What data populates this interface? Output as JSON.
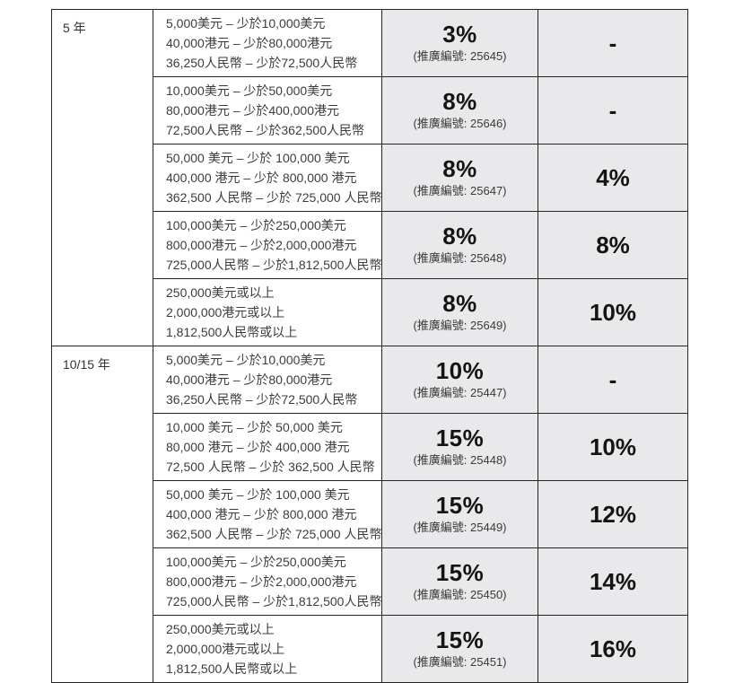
{
  "table": {
    "accent_bg": "#e9e9eb",
    "border_color": "#242424",
    "sections": [
      {
        "term": "5 年",
        "rows": [
          {
            "amounts": [
              "5,000美元 – 少於10,000美元",
              "40,000港元 – 少於80,000港元",
              "36,250人民幣 – 少於72,500人民幣"
            ],
            "rate1": "3%",
            "promo": "(推廣編號: 25645)",
            "rate2": "-"
          },
          {
            "amounts": [
              "10,000美元 – 少於50,000美元",
              "80,000港元 – 少於400,000港元",
              "72,500人民幣 – 少於362,500人民幣"
            ],
            "rate1": "8%",
            "promo": "(推廣編號: 25646)",
            "rate2": "-"
          },
          {
            "amounts": [
              "50,000 美元 – 少於 100,000 美元",
              "400,000 港元 – 少於 800,000 港元",
              "362,500 人民幣 – 少於 725,000 人民幣"
            ],
            "rate1": "8%",
            "promo": "(推廣編號: 25647)",
            "rate2": "4%"
          },
          {
            "amounts": [
              "100,000美元 – 少於250,000美元",
              "800,000港元 – 少於2,000,000港元",
              "725,000人民幣 – 少於1,812,500人民幣"
            ],
            "rate1": "8%",
            "promo": "(推廣編號: 25648)",
            "rate2": "8%"
          },
          {
            "amounts": [
              "250,000美元或以上",
              "2,000,000港元或以上",
              "1,812,500人民幣或以上"
            ],
            "rate1": "8%",
            "promo": "(推廣編號: 25649)",
            "rate2": "10%"
          }
        ]
      },
      {
        "term": "10/15 年",
        "rows": [
          {
            "amounts": [
              "5,000美元 – 少於10,000美元",
              "40,000港元 – 少於80,000港元",
              "36,250人民幣 – 少於72,500人民幣"
            ],
            "rate1": "10%",
            "promo": "(推廣編號: 25447)",
            "rate2": "-"
          },
          {
            "amounts": [
              "10,000 美元 – 少於 50,000 美元",
              "80,000 港元 – 少於 400,000 港元",
              "72,500 人民幣 – 少於 362,500 人民幣"
            ],
            "rate1": "15%",
            "promo": "(推廣編號: 25448)",
            "rate2": "10%"
          },
          {
            "amounts": [
              "50,000 美元 – 少於 100,000 美元",
              "400,000 港元 – 少於 800,000 港元",
              "362,500 人民幣 – 少於 725,000 人民幣"
            ],
            "rate1": "15%",
            "promo": "(推廣編號: 25449)",
            "rate2": "12%"
          },
          {
            "amounts": [
              "100,000美元 – 少於250,000美元",
              "800,000港元 – 少於2,000,000港元",
              "725,000人民幣 – 少於1,812,500人民幣"
            ],
            "rate1": "15%",
            "promo": "(推廣編號: 25450)",
            "rate2": "14%"
          },
          {
            "amounts": [
              "250,000美元或以上",
              "2,000,000港元或以上",
              "1,812,500人民幣或以上"
            ],
            "rate1": "15%",
            "promo": "(推廣編號: 25451)",
            "rate2": "16%"
          }
        ]
      }
    ]
  }
}
